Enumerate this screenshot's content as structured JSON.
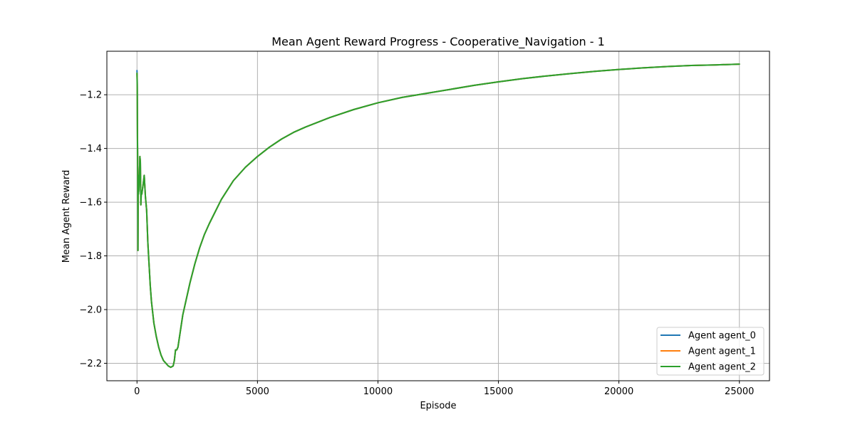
{
  "chart_data": {
    "type": "line",
    "title": "Mean Agent Reward Progress - Cooperative_Navigation - 1",
    "xlabel": "Episode",
    "ylabel": "Mean Agent Reward",
    "xlim": [
      -1250,
      26250
    ],
    "ylim": [
      -2.265,
      -1.038
    ],
    "xticks": [
      0,
      5000,
      10000,
      15000,
      20000,
      25000
    ],
    "xtick_labels": [
      "0",
      "5000",
      "10000",
      "15000",
      "20000",
      "25000"
    ],
    "yticks": [
      -2.2,
      -2.0,
      -1.8,
      -1.6,
      -1.4,
      -1.2
    ],
    "ytick_labels": [
      "−2.2",
      "−2.0",
      "−1.8",
      "−1.6",
      "−1.4",
      "−1.2"
    ],
    "grid": true,
    "legend_position": "lower-right",
    "colors": {
      "agent_0": "#1f77b4",
      "agent_1": "#ff7f0e",
      "agent_2": "#2ca02c",
      "grid": "#b0b0b0"
    },
    "series": [
      {
        "name": "Agent agent_0",
        "color": "#1f77b4",
        "x": [
          0,
          10,
          20,
          30,
          40,
          50,
          60,
          80,
          100,
          120,
          140,
          160,
          180,
          200,
          230,
          260,
          300,
          350,
          400,
          450,
          500,
          550,
          600,
          700,
          800,
          900,
          1000,
          1100,
          1200,
          1300,
          1400,
          1500,
          1550,
          1600,
          1650,
          1700,
          1800,
          1900,
          2000,
          2200,
          2400,
          2600,
          2800,
          3000,
          3500,
          4000,
          4500,
          5000,
          5500,
          6000,
          6500,
          7000,
          8000,
          9000,
          10000,
          11000,
          12000,
          13000,
          14000,
          15000,
          16000,
          17000,
          18000,
          19000,
          20000,
          21000,
          22000,
          23000,
          24000,
          25000
        ],
        "y": [
          -1.11,
          -1.15,
          -1.35,
          -1.47,
          -1.78,
          -1.5,
          -1.57,
          -1.55,
          -1.5,
          -1.43,
          -1.45,
          -1.61,
          -1.56,
          -1.57,
          -1.55,
          -1.53,
          -1.5,
          -1.58,
          -1.63,
          -1.75,
          -1.83,
          -1.91,
          -1.97,
          -2.05,
          -2.1,
          -2.14,
          -2.17,
          -2.19,
          -2.2,
          -2.21,
          -2.215,
          -2.21,
          -2.19,
          -2.15,
          -2.15,
          -2.14,
          -2.08,
          -2.02,
          -1.98,
          -1.9,
          -1.83,
          -1.77,
          -1.72,
          -1.68,
          -1.59,
          -1.52,
          -1.47,
          -1.43,
          -1.395,
          -1.365,
          -1.34,
          -1.32,
          -1.285,
          -1.255,
          -1.23,
          -1.21,
          -1.195,
          -1.18,
          -1.165,
          -1.152,
          -1.14,
          -1.13,
          -1.121,
          -1.113,
          -1.106,
          -1.1,
          -1.095,
          -1.091,
          -1.089,
          -1.086
        ]
      },
      {
        "name": "Agent agent_1",
        "color": "#ff7f0e",
        "x": [
          0,
          10,
          20,
          30,
          40,
          50,
          60,
          80,
          100,
          120,
          140,
          160,
          180,
          200,
          230,
          260,
          300,
          350,
          400,
          450,
          500,
          550,
          600,
          700,
          800,
          900,
          1000,
          1100,
          1200,
          1300,
          1400,
          1500,
          1550,
          1600,
          1650,
          1700,
          1800,
          1900,
          2000,
          2200,
          2400,
          2600,
          2800,
          3000,
          3500,
          4000,
          4500,
          5000,
          5500,
          6000,
          6500,
          7000,
          8000,
          9000,
          10000,
          11000,
          12000,
          13000,
          14000,
          15000,
          16000,
          17000,
          18000,
          19000,
          20000,
          21000,
          22000,
          23000,
          24000,
          25000
        ],
        "y": [
          -1.12,
          -1.16,
          -1.36,
          -1.47,
          -1.78,
          -1.5,
          -1.57,
          -1.55,
          -1.5,
          -1.43,
          -1.45,
          -1.61,
          -1.56,
          -1.57,
          -1.55,
          -1.53,
          -1.5,
          -1.58,
          -1.63,
          -1.75,
          -1.83,
          -1.91,
          -1.97,
          -2.05,
          -2.1,
          -2.14,
          -2.17,
          -2.19,
          -2.2,
          -2.21,
          -2.215,
          -2.21,
          -2.19,
          -2.15,
          -2.15,
          -2.14,
          -2.08,
          -2.02,
          -1.98,
          -1.9,
          -1.83,
          -1.77,
          -1.72,
          -1.68,
          -1.59,
          -1.52,
          -1.47,
          -1.43,
          -1.395,
          -1.365,
          -1.34,
          -1.32,
          -1.285,
          -1.255,
          -1.23,
          -1.21,
          -1.195,
          -1.18,
          -1.165,
          -1.152,
          -1.14,
          -1.13,
          -1.121,
          -1.113,
          -1.106,
          -1.1,
          -1.095,
          -1.091,
          -1.089,
          -1.086
        ]
      },
      {
        "name": "Agent agent_2",
        "color": "#2ca02c",
        "x": [
          0,
          10,
          20,
          30,
          40,
          50,
          60,
          80,
          100,
          120,
          140,
          160,
          180,
          200,
          230,
          260,
          300,
          350,
          400,
          450,
          500,
          550,
          600,
          700,
          800,
          900,
          1000,
          1100,
          1200,
          1300,
          1400,
          1500,
          1550,
          1600,
          1650,
          1700,
          1800,
          1900,
          2000,
          2200,
          2400,
          2600,
          2800,
          3000,
          3500,
          4000,
          4500,
          5000,
          5500,
          6000,
          6500,
          7000,
          8000,
          9000,
          10000,
          11000,
          12000,
          13000,
          14000,
          15000,
          16000,
          17000,
          18000,
          19000,
          20000,
          21000,
          22000,
          23000,
          24000,
          25000
        ],
        "y": [
          -1.12,
          -1.17,
          -1.37,
          -1.48,
          -1.78,
          -1.5,
          -1.57,
          -1.55,
          -1.5,
          -1.43,
          -1.45,
          -1.61,
          -1.56,
          -1.57,
          -1.55,
          -1.53,
          -1.5,
          -1.58,
          -1.63,
          -1.75,
          -1.83,
          -1.91,
          -1.97,
          -2.05,
          -2.1,
          -2.14,
          -2.17,
          -2.19,
          -2.2,
          -2.21,
          -2.215,
          -2.21,
          -2.19,
          -2.15,
          -2.15,
          -2.14,
          -2.08,
          -2.02,
          -1.98,
          -1.9,
          -1.83,
          -1.77,
          -1.72,
          -1.68,
          -1.59,
          -1.52,
          -1.47,
          -1.43,
          -1.395,
          -1.365,
          -1.34,
          -1.32,
          -1.285,
          -1.255,
          -1.23,
          -1.21,
          -1.195,
          -1.18,
          -1.165,
          -1.152,
          -1.14,
          -1.13,
          -1.121,
          -1.113,
          -1.106,
          -1.1,
          -1.095,
          -1.091,
          -1.089,
          -1.086
        ]
      }
    ]
  }
}
